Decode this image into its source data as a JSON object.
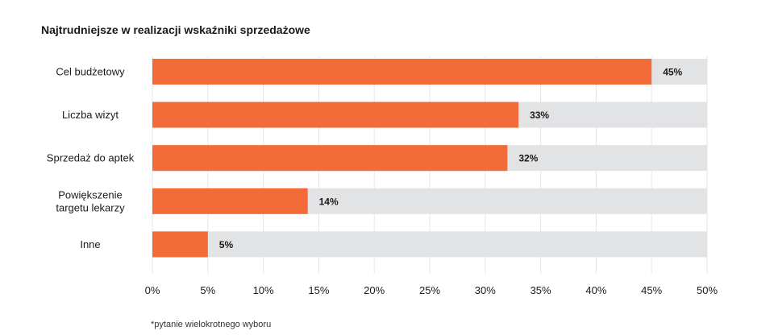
{
  "chart_data": {
    "type": "bar",
    "orientation": "horizontal",
    "title": "Najtrudniejsze w realizacji wskaźniki sprzedażowe",
    "categories": [
      [
        "Cel budżetowy"
      ],
      [
        "Liczba wizyt"
      ],
      [
        "Sprzedaż do aptek"
      ],
      [
        "Powiększenie",
        "targetu lekarzy"
      ],
      [
        "Inne"
      ]
    ],
    "values": [
      45,
      33,
      32,
      14,
      5
    ],
    "value_labels": [
      "45%",
      "33%",
      "32%",
      "14%",
      "5%"
    ],
    "xlim": [
      0,
      50
    ],
    "xticks": [
      0,
      5,
      10,
      15,
      20,
      25,
      30,
      35,
      40,
      45,
      50
    ],
    "xtick_labels": [
      "0%",
      "5%",
      "10%",
      "15%",
      "20%",
      "25%",
      "30%",
      "35%",
      "40%",
      "45%",
      "50%"
    ],
    "grid": true,
    "colors": {
      "bar": "#f26b38",
      "track": "#e2e3e5",
      "grid": "#e6e6e6"
    }
  },
  "footnote": "*pytanie wielokrotnego wyboru"
}
